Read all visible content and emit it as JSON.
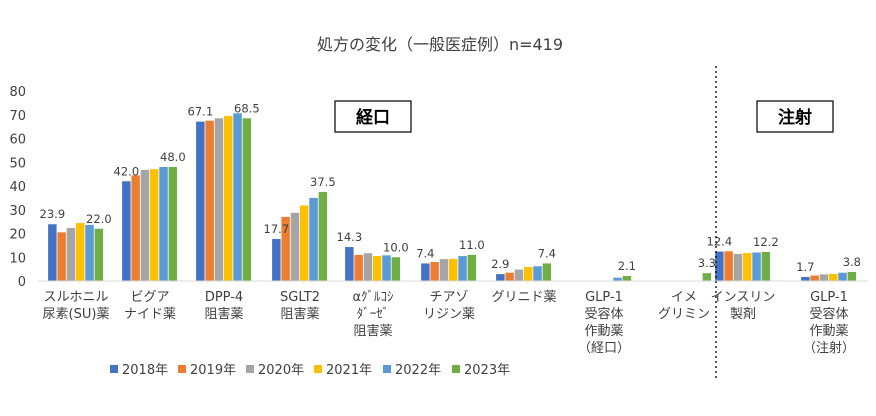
{
  "chart_data": {
    "type": "bar",
    "title": "処方の変化（一般医症例）n=419",
    "ylim": [
      0,
      80
    ],
    "yticks": [
      "0",
      "10",
      "20",
      "30",
      "40",
      "50",
      "60",
      "70",
      "80"
    ],
    "grid": false,
    "legend_position": "bottom",
    "categories": [
      [
        "スルホニル",
        "尿素(SU)薬"
      ],
      [
        "ビグア",
        "ナイド薬"
      ],
      [
        "DPP-4",
        "阻害薬"
      ],
      [
        "SGLT2",
        "阻害薬"
      ],
      [
        "αｸﾞﾙｺｼ",
        "ﾀﾞｰｾﾞ",
        "阻害薬"
      ],
      [
        "チアゾ",
        "リジン薬"
      ],
      [
        "グリニド薬"
      ],
      [
        "GLP-1",
        "受容体",
        "作動薬",
        "（経口）"
      ],
      [
        "イメ",
        "グリミン"
      ],
      [
        "インスリン",
        "製剤"
      ],
      [
        "GLP-1",
        "受容体",
        "作動薬",
        "（注射）"
      ]
    ],
    "series": [
      {
        "name": "2018年",
        "color": "#4472C4",
        "values": [
          23.9,
          42.0,
          67.1,
          17.7,
          14.3,
          7.4,
          2.9,
          0,
          0,
          12.4,
          1.7
        ]
      },
      {
        "name": "2019年",
        "color": "#ED7D31",
        "values": [
          20.5,
          44.5,
          67.5,
          27.0,
          11.0,
          8.0,
          3.5,
          0,
          0,
          12.5,
          2.3
        ]
      },
      {
        "name": "2020年",
        "color": "#A5A5A5",
        "values": [
          22.3,
          46.8,
          68.5,
          28.7,
          11.7,
          9.2,
          4.8,
          0,
          0,
          11.4,
          2.8
        ]
      },
      {
        "name": "2021年",
        "color": "#FFC000",
        "values": [
          24.4,
          47.1,
          69.5,
          31.8,
          10.5,
          9.3,
          5.9,
          0,
          0,
          11.8,
          3.0
        ]
      },
      {
        "name": "2022年",
        "color": "#5B9BD5",
        "values": [
          23.6,
          48.0,
          70.6,
          35.0,
          10.8,
          10.5,
          6.2,
          1.4,
          0,
          12.0,
          3.5
        ]
      },
      {
        "name": "2023年",
        "color": "#70AD47",
        "values": [
          22.0,
          48.0,
          68.5,
          37.5,
          10.0,
          11.0,
          7.4,
          2.1,
          3.3,
          12.2,
          3.8
        ]
      }
    ],
    "data_labels": [
      {
        "category": 0,
        "series": 0,
        "text": "23.9"
      },
      {
        "category": 0,
        "series": 5,
        "text": "22.0"
      },
      {
        "category": 1,
        "series": 0,
        "text": "42.0"
      },
      {
        "category": 1,
        "series": 5,
        "text": "48.0"
      },
      {
        "category": 2,
        "series": 0,
        "text": "67.1"
      },
      {
        "category": 2,
        "series": 5,
        "text": "68.5"
      },
      {
        "category": 3,
        "series": 0,
        "text": "17.7"
      },
      {
        "category": 3,
        "series": 5,
        "text": "37.5"
      },
      {
        "category": 4,
        "series": 0,
        "text": "14.3"
      },
      {
        "category": 4,
        "series": 5,
        "text": "10.0"
      },
      {
        "category": 5,
        "series": 0,
        "text": "7.4"
      },
      {
        "category": 5,
        "series": 5,
        "text": "11.0"
      },
      {
        "category": 6,
        "series": 0,
        "text": "2.9"
      },
      {
        "category": 6,
        "series": 5,
        "text": "7.4"
      },
      {
        "category": 7,
        "series": 5,
        "text": "2.1"
      },
      {
        "category": 8,
        "series": 5,
        "text": "3.3"
      },
      {
        "category": 9,
        "series": 0,
        "text": "12.4"
      },
      {
        "category": 9,
        "series": 5,
        "text": "12.2"
      },
      {
        "category": 10,
        "series": 0,
        "text": "1.7"
      },
      {
        "category": 10,
        "series": 5,
        "text": "3.8"
      }
    ],
    "group_labels": [
      {
        "text": "経口",
        "first_category": 0,
        "last_category": 8
      },
      {
        "text": "注射",
        "first_category": 9,
        "last_category": 10
      }
    ],
    "separator": {
      "style": "dotted",
      "between_categories": [
        8,
        9
      ]
    }
  }
}
